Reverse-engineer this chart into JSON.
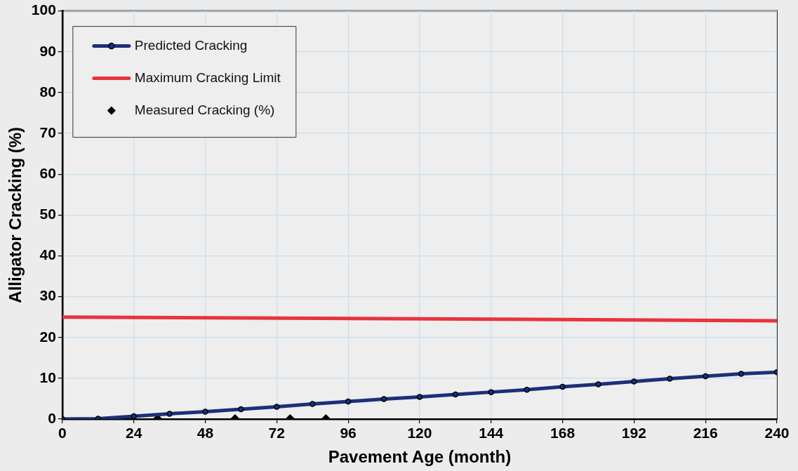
{
  "chart_data": {
    "type": "line",
    "xlabel": "Pavement Age (month)",
    "ylabel": "Alligator Cracking (%)",
    "xlim": [
      0,
      240
    ],
    "xticks": [
      0,
      24,
      48,
      72,
      96,
      120,
      144,
      168,
      192,
      216,
      240
    ],
    "ylim": [
      0,
      100
    ],
    "yticks": [
      0,
      10,
      20,
      30,
      40,
      50,
      60,
      70,
      80,
      90,
      100
    ],
    "grid": true,
    "legend": "top left",
    "series": [
      {
        "name": "Predicted Cracking",
        "type": "line",
        "color": "#1c2f7a",
        "marker": "circle",
        "x": [
          0,
          12,
          24,
          36,
          48,
          60,
          72,
          84,
          96,
          108,
          120,
          132,
          144,
          156,
          168,
          180,
          192,
          204,
          216,
          228,
          240
        ],
        "values": [
          0,
          0.1,
          0.7,
          1.3,
          1.8,
          2.4,
          3.0,
          3.7,
          4.3,
          4.9,
          5.4,
          6.0,
          6.6,
          7.2,
          7.9,
          8.5,
          9.2,
          9.9,
          10.5,
          11.1,
          11.5
        ]
      },
      {
        "name": "Maximum Cracking Limit",
        "type": "line",
        "color": "#e8333f",
        "marker": "none",
        "x": [
          0,
          240
        ],
        "values": [
          25,
          24.1
        ]
      },
      {
        "name": "Measured Cracking (%)",
        "type": "scatter",
        "color": "#000000",
        "marker": "diamond",
        "x": [
          32,
          58,
          76.5,
          88.5
        ],
        "values": [
          0,
          0,
          0,
          0
        ]
      }
    ]
  }
}
